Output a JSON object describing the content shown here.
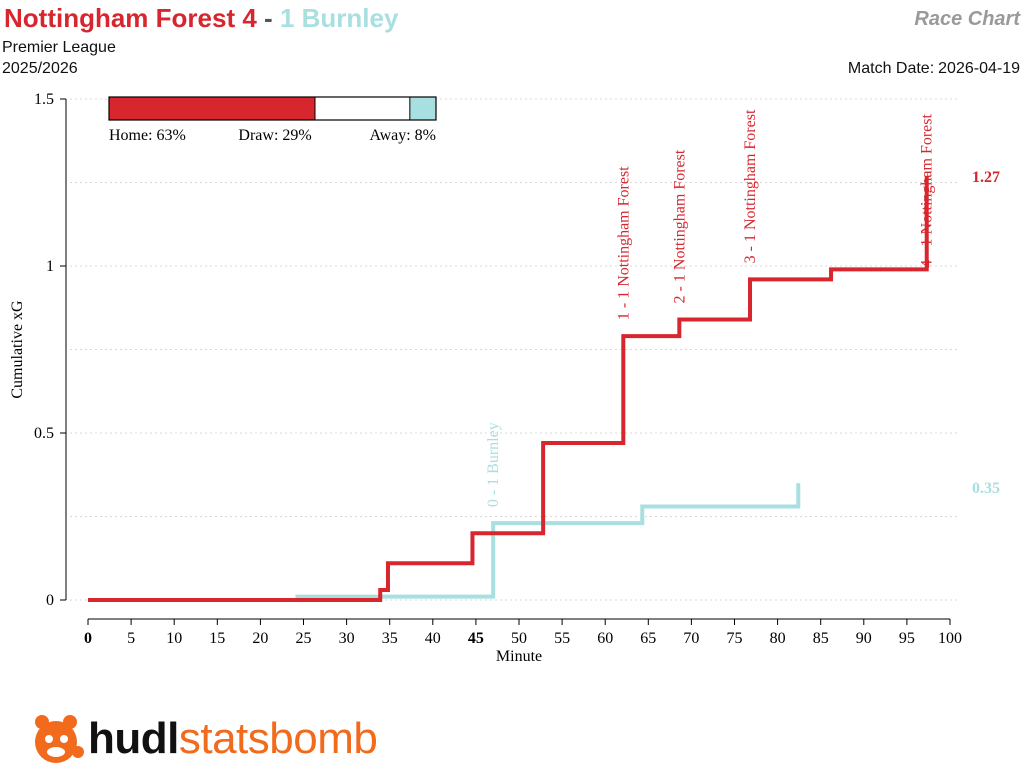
{
  "header": {
    "home_label": "Nottingham Forest 4",
    "separator": "-",
    "away_label": "1 Burnley",
    "chart_type": "Race Chart",
    "competition": "Premier League",
    "season": "2025/2026",
    "match_date_label": "Match Date:",
    "match_date": "2026-04-19"
  },
  "colors": {
    "home": "#d7262e",
    "away": "#a8dfe0",
    "grid": "#d8d8d8",
    "logo_orange": "#f26a1b",
    "logo_dark": "#111111"
  },
  "logo": {
    "icon": "statsbomb-bulldog-icon",
    "text_bold": "hudl",
    "text_light": "statsbomb"
  },
  "chart_data": {
    "type": "line",
    "title": "",
    "xlabel": "Minute",
    "ylabel": "Cumulative xG",
    "xlim": [
      0,
      100
    ],
    "ylim": [
      0,
      1.5
    ],
    "x_ticks": [
      0,
      5,
      10,
      15,
      20,
      25,
      30,
      35,
      40,
      45,
      50,
      55,
      60,
      65,
      70,
      75,
      80,
      85,
      90,
      95,
      100
    ],
    "x_tick_labels": [
      "0",
      "5",
      "10",
      "15",
      "20",
      "25",
      "30",
      "35",
      "40",
      "45",
      "50",
      "55",
      "60",
      "65",
      "70",
      "75",
      "80",
      "85",
      "90",
      "95",
      "100"
    ],
    "bold_x_ticks": [
      "0",
      "45"
    ],
    "y_ticks": [
      0,
      0.5,
      1,
      1.5
    ],
    "y_tick_labels": [
      "0",
      "0.5",
      "1",
      "1.5"
    ],
    "grid": true,
    "step": true,
    "series": [
      {
        "name": "Nottingham Forest",
        "role": "home",
        "x": [
          0,
          24.3,
          33.9,
          34.8,
          44.6,
          52.8,
          62.1,
          68.6,
          76.8,
          86.2,
          97.3
        ],
        "y": [
          0,
          0,
          0.03,
          0.11,
          0.2,
          0.47,
          0.79,
          0.84,
          0.96,
          0.99,
          1.27
        ],
        "final_label": "1.27"
      },
      {
        "name": "Burnley",
        "role": "away",
        "x": [
          0,
          24.3,
          47.0,
          64.3,
          82.4
        ],
        "y": [
          0,
          0.01,
          0.23,
          0.28,
          0.35
        ],
        "final_label": "0.35"
      }
    ],
    "goals": [
      {
        "minute": 47.0,
        "y": 0.23,
        "label": "0 - 1 Burnley",
        "team": "away"
      },
      {
        "minute": 62.1,
        "y": 0.79,
        "label": "1 - 1 Nottingham Forest",
        "team": "home"
      },
      {
        "minute": 68.6,
        "y": 0.84,
        "label": "2 - 1 Nottingham Forest",
        "team": "home"
      },
      {
        "minute": 76.8,
        "y": 0.96,
        "label": "3 - 1 Nottingham Forest",
        "team": "home"
      },
      {
        "minute": 97.3,
        "y": 1.27,
        "label": "4 - 1 Nottingham Forest",
        "team": "home"
      }
    ],
    "outcome_probabilities": {
      "home": 0.63,
      "draw": 0.29,
      "away": 0.08,
      "home_label": "Home: 63%",
      "draw_label": "Draw: 29%",
      "away_label": "Away: 8%"
    }
  }
}
